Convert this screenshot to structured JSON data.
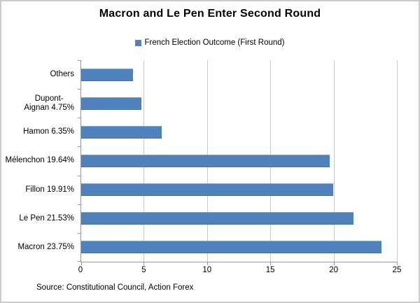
{
  "title": "Macron and Le Pen Enter Second Round",
  "legend": {
    "label": "French Election Outcome (First Round)",
    "marker_color": "#4f81bd"
  },
  "source": "Source: Constitutional Council, Action Forex",
  "colors": {
    "bar": "#4f81bd",
    "gridline": "#c9c9c9",
    "axis": "#969696",
    "frame": "#cccccc",
    "text": "#000000"
  },
  "chart_data": {
    "type": "bar",
    "orientation": "horizontal",
    "title": "Macron and Le Pen Enter Second Round",
    "legend_entries": [
      "French Election Outcome (First Round)"
    ],
    "legend_position": "top",
    "xlabel": "",
    "ylabel": "",
    "grid": true,
    "xlim": [
      0,
      25
    ],
    "xticks": [
      0,
      5,
      10,
      15,
      20,
      25
    ],
    "categories": [
      "Others",
      "Dupont-Aignan 4.75%",
      "Hamon 6.35%",
      "Mélenchon 19.64%",
      "Fillon 19.91%",
      "Le Pen 21.53%",
      "Macron 23.75%"
    ],
    "category_label_lines": [
      [
        "Others"
      ],
      [
        "Dupont-",
        "Aignan 4.75%"
      ],
      [
        "Hamon 6.35%"
      ],
      [
        "Mélenchon 19.64%"
      ],
      [
        "Fillon 19.91%"
      ],
      [
        "Le Pen 21.53%"
      ],
      [
        "Macron 23.75%"
      ]
    ],
    "values": [
      4.07,
      4.75,
      6.35,
      19.64,
      19.91,
      21.53,
      23.75
    ]
  }
}
